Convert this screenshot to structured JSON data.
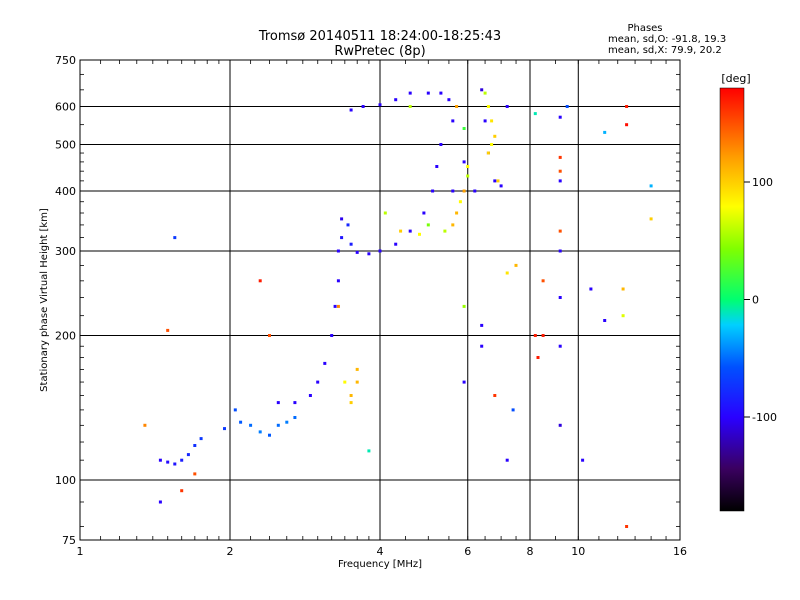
{
  "chart_data": {
    "type": "scatter",
    "title": "Tromsø 20140511 18:24:00-18:25:43",
    "subtitle": "RwPretec (8p)",
    "xlabel": "Frequency [MHz]",
    "ylabel": "Stationary phase Virtual Height [km]",
    "x_scale": "log2",
    "y_scale": "log",
    "xlim": [
      1,
      16
    ],
    "ylim": [
      75,
      750
    ],
    "xticks": [
      1,
      2,
      4,
      6,
      8,
      10,
      16
    ],
    "xtick_labels": [
      "1",
      "2",
      "4",
      "6",
      "8",
      "10",
      "16"
    ],
    "yticks": [
      75,
      100,
      200,
      300,
      400,
      500,
      600,
      750
    ],
    "ytick_labels": [
      "75",
      "100",
      "200",
      "300",
      "400",
      "500",
      "600",
      "750"
    ],
    "grid": true,
    "stats_header": "Phases",
    "stats_lines": [
      "mean, sd,O:  -91.8, 19.3",
      "mean, sd,X:  79.9, 20.2"
    ],
    "colorbar": {
      "label": "[deg]",
      "range": [
        -180,
        180
      ],
      "ticks": [
        100,
        0,
        -100
      ],
      "tick_labels": [
        "100",
        "0",
        "-100"
      ]
    },
    "series": [
      {
        "mode": "O",
        "points": [
          [
            1.45,
            110,
            -100
          ],
          [
            1.5,
            109,
            -95
          ],
          [
            1.55,
            108,
            -90
          ],
          [
            1.6,
            110,
            -85
          ],
          [
            1.65,
            113,
            -80
          ],
          [
            1.7,
            118,
            -75
          ],
          [
            1.75,
            122,
            -70
          ],
          [
            1.95,
            128,
            -70
          ],
          [
            2.05,
            140,
            -60
          ],
          [
            2.1,
            132,
            -55
          ],
          [
            2.2,
            130,
            -50
          ],
          [
            2.3,
            126,
            -45
          ],
          [
            2.4,
            124,
            -55
          ],
          [
            2.5,
            130,
            -50
          ],
          [
            2.6,
            132,
            -45
          ],
          [
            2.7,
            135,
            -50
          ],
          [
            2.5,
            145,
            -100
          ],
          [
            2.7,
            145,
            -100
          ],
          [
            2.9,
            150,
            -100
          ],
          [
            3.0,
            160,
            -100
          ],
          [
            3.1,
            175,
            -100
          ],
          [
            3.2,
            200,
            -100
          ],
          [
            3.25,
            230,
            -100
          ],
          [
            3.3,
            260,
            -100
          ],
          [
            3.3,
            300,
            -100
          ],
          [
            3.35,
            350,
            -105
          ],
          [
            3.35,
            320,
            -90
          ],
          [
            3.45,
            340,
            -80
          ],
          [
            3.5,
            310,
            -85
          ],
          [
            3.6,
            298,
            -100
          ],
          [
            3.8,
            296,
            -100
          ],
          [
            4.0,
            300,
            -100
          ],
          [
            4.3,
            310,
            -100
          ],
          [
            4.6,
            330,
            -100
          ],
          [
            4.9,
            360,
            -100
          ],
          [
            5.1,
            400,
            -100
          ],
          [
            5.2,
            450,
            -100
          ],
          [
            5.3,
            500,
            -100
          ],
          [
            3.5,
            590,
            -100
          ],
          [
            3.7,
            600,
            -100
          ],
          [
            4.0,
            605,
            -100
          ],
          [
            4.3,
            620,
            -100
          ],
          [
            4.6,
            640,
            -100
          ],
          [
            5.0,
            640,
            -100
          ],
          [
            5.3,
            640,
            -100
          ],
          [
            5.5,
            620,
            -100
          ],
          [
            5.6,
            560,
            -100
          ],
          [
            5.6,
            400,
            -100
          ],
          [
            5.9,
            460,
            -100
          ],
          [
            6.2,
            400,
            -100
          ],
          [
            6.4,
            650,
            -110
          ],
          [
            6.5,
            560,
            -100
          ],
          [
            6.6,
            480,
            -100
          ],
          [
            6.8,
            420,
            -100
          ],
          [
            7.0,
            410,
            -100
          ],
          [
            7.2,
            600,
            -100
          ],
          [
            9.2,
            570,
            -100
          ],
          [
            9.2,
            420,
            -100
          ],
          [
            9.2,
            300,
            -100
          ],
          [
            9.2,
            240,
            -100
          ],
          [
            9.2,
            190,
            -100
          ],
          [
            9.2,
            130,
            -110
          ],
          [
            10.2,
            110,
            -100
          ],
          [
            10.6,
            250,
            -100
          ],
          [
            11.3,
            215,
            -100
          ],
          [
            7.2,
            110,
            -100
          ],
          [
            6.4,
            210,
            -100
          ],
          [
            6.4,
            190,
            -100
          ],
          [
            5.9,
            160,
            -100
          ],
          [
            1.45,
            90,
            -100
          ],
          [
            1.55,
            320,
            -70
          ]
        ]
      },
      {
        "mode": "X",
        "points": [
          [
            4.1,
            360,
            60
          ],
          [
            4.4,
            330,
            100
          ],
          [
            4.8,
            325,
            80
          ],
          [
            5.0,
            340,
            40
          ],
          [
            5.4,
            330,
            60
          ],
          [
            5.7,
            360,
            110
          ],
          [
            5.8,
            380,
            80
          ],
          [
            5.9,
            400,
            120
          ],
          [
            6.0,
            430,
            60
          ],
          [
            6.6,
            480,
            100
          ],
          [
            6.7,
            500,
            80
          ],
          [
            6.8,
            520,
            100
          ],
          [
            6.7,
            560,
            90
          ],
          [
            6.6,
            600,
            80
          ],
          [
            6.5,
            640,
            60
          ],
          [
            5.9,
            540,
            20
          ],
          [
            4.6,
            600,
            60
          ],
          [
            3.6,
            170,
            110
          ],
          [
            3.5,
            150,
            110
          ],
          [
            3.4,
            160,
            80
          ],
          [
            3.5,
            145,
            100
          ],
          [
            3.6,
            160,
            110
          ],
          [
            5.7,
            600,
            120
          ],
          [
            5.6,
            340,
            110
          ],
          [
            6.0,
            450,
            80
          ],
          [
            6.9,
            420,
            100
          ],
          [
            1.35,
            130,
            130
          ],
          [
            1.7,
            103,
            150
          ],
          [
            1.6,
            95,
            160
          ],
          [
            2.4,
            200,
            150
          ],
          [
            2.3,
            260,
            170
          ],
          [
            3.3,
            230,
            130
          ],
          [
            5.9,
            230,
            50
          ],
          [
            7.2,
            270,
            90
          ],
          [
            7.5,
            280,
            110
          ],
          [
            8.2,
            200,
            170
          ],
          [
            8.5,
            200,
            170
          ],
          [
            8.3,
            180,
            170
          ],
          [
            8.5,
            260,
            150
          ],
          [
            9.2,
            440,
            150
          ],
          [
            9.2,
            330,
            150
          ],
          [
            9.2,
            470,
            160
          ],
          [
            12.3,
            220,
            70
          ],
          [
            12.3,
            250,
            110
          ],
          [
            12.5,
            600,
            170
          ],
          [
            12.5,
            550,
            175
          ],
          [
            12.5,
            80,
            160
          ],
          [
            14.0,
            350,
            100
          ],
          [
            14.0,
            410,
            -30
          ],
          [
            11.3,
            530,
            -30
          ],
          [
            8.2,
            580,
            -10
          ],
          [
            3.8,
            115,
            -10
          ],
          [
            1.5,
            205,
            150
          ],
          [
            7.4,
            140,
            -60
          ],
          [
            9.5,
            600,
            -60
          ],
          [
            6.8,
            150,
            160
          ]
        ]
      }
    ]
  }
}
